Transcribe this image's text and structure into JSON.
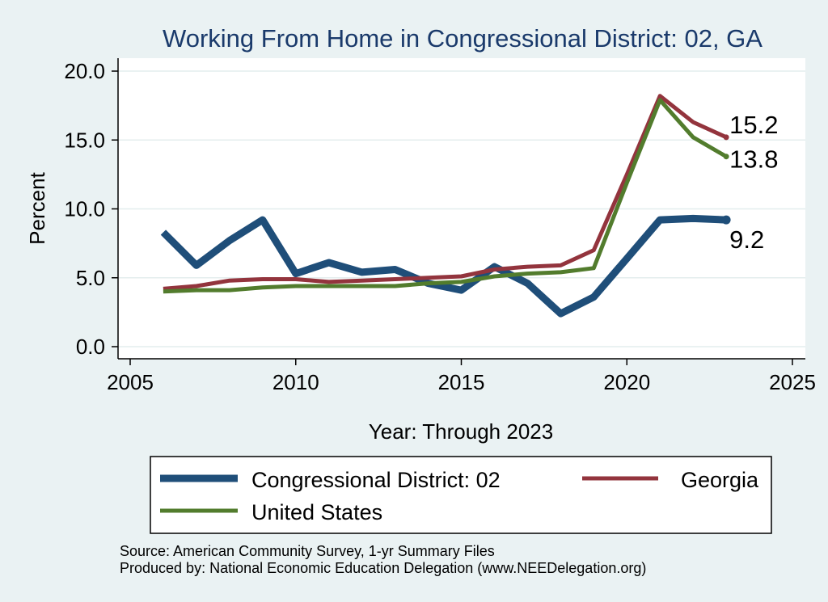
{
  "chart_data": {
    "type": "line",
    "title": "Working From Home in Congressional District: 02, GA",
    "xlabel": "Year: Through 2023",
    "ylabel": "Percent",
    "xlim": [
      2005,
      2025
    ],
    "ylim": [
      0,
      20
    ],
    "xticks": [
      "2005",
      "2010",
      "2015",
      "2020",
      "2025"
    ],
    "yticks": [
      "0.0",
      "5.0",
      "10.0",
      "15.0",
      "20.0"
    ],
    "grid": true,
    "legend_position": "bottom",
    "x": [
      2006,
      2007,
      2008,
      2009,
      2010,
      2011,
      2012,
      2013,
      2014,
      2015,
      2016,
      2017,
      2018,
      2019,
      2020,
      2021,
      2022,
      2023
    ],
    "series": [
      {
        "name": "Congressional District: 02",
        "color": "#1f4e79",
        "values": [
          8.3,
          5.9,
          7.7,
          9.2,
          5.3,
          6.1,
          5.4,
          5.6,
          4.6,
          4.1,
          5.8,
          4.6,
          2.4,
          3.6,
          6.4,
          9.2,
          9.3,
          9.2
        ],
        "end_label": "9.2"
      },
      {
        "name": "Georgia",
        "color": "#93343d",
        "values": [
          4.2,
          4.4,
          4.8,
          4.9,
          4.9,
          4.7,
          4.8,
          4.9,
          5.0,
          5.1,
          5.6,
          5.8,
          5.9,
          7.0,
          12.5,
          18.2,
          16.3,
          15.2
        ],
        "end_label": "15.2"
      },
      {
        "name": "United States",
        "color": "#527c2d",
        "values": [
          4.0,
          4.1,
          4.1,
          4.3,
          4.4,
          4.4,
          4.4,
          4.4,
          4.6,
          4.7,
          5.1,
          5.3,
          5.4,
          5.7,
          11.9,
          17.9,
          15.2,
          13.8
        ],
        "end_label": "13.8"
      }
    ],
    "source_lines": [
      "Source: American Community Survey, 1-yr Summary Files",
      "Produced by: National Economic Education Delegation (www.NEEDelegation.org)"
    ]
  }
}
